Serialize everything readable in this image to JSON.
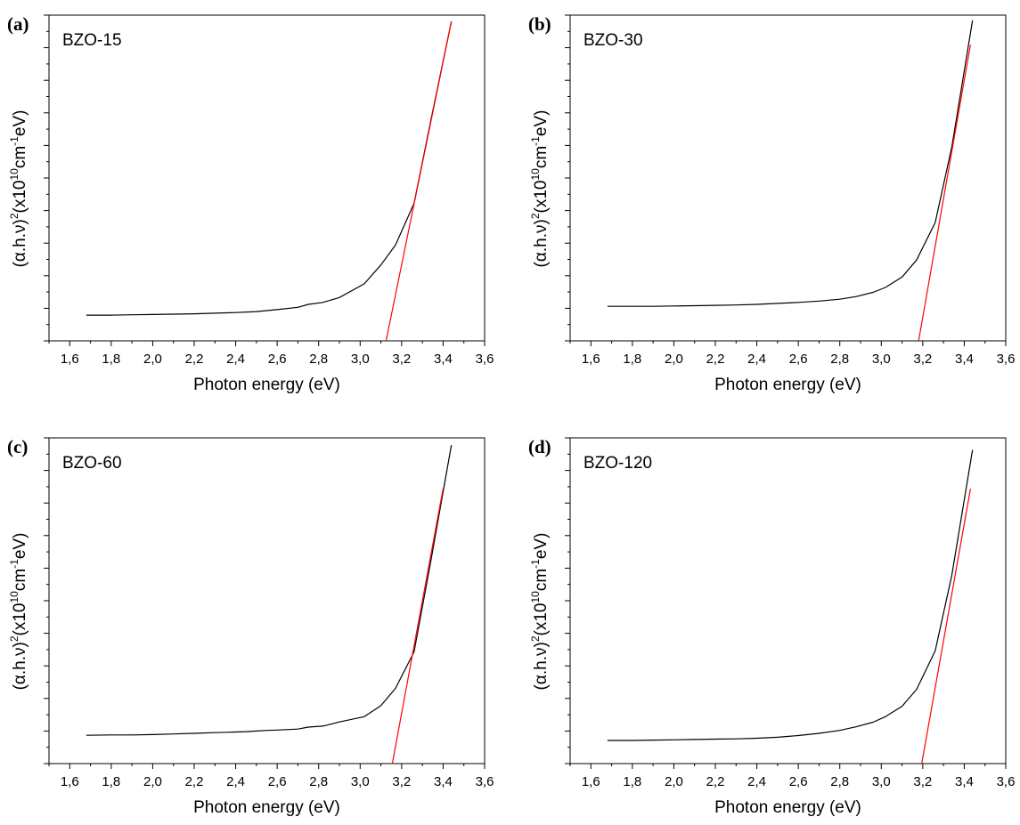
{
  "figure": {
    "xlabel": "Photon energy (eV)",
    "ylabel_parts": [
      "(α.h.ν)",
      "2",
      "(x10",
      "10",
      "cm",
      "-1",
      "eV)"
    ]
  },
  "chart_data": [
    {
      "type": "line",
      "panel": "(a)",
      "label": "BZO-15",
      "xlabel": "Photon energy (eV)",
      "ylabel": "(α.h.ν)²(x10¹⁰cm⁻¹eV)",
      "xlim": [
        1.5,
        3.6
      ],
      "ylim": [
        0,
        100
      ],
      "xticks": [
        "1,6",
        "1,8",
        "2,0",
        "2,2",
        "2,4",
        "2,6",
        "2,8",
        "3,0",
        "3,2",
        "3,4",
        "3,6"
      ],
      "grid": false,
      "series": [
        {
          "color": "#000000",
          "x": [
            1.68,
            1.8,
            1.9,
            2.0,
            2.1,
            2.2,
            2.3,
            2.4,
            2.5,
            2.6,
            2.7,
            2.75,
            2.82,
            2.9,
            3.02,
            3.1,
            3.17,
            3.26,
            3.34,
            3.44
          ],
          "y": [
            7.9,
            7.9,
            8.0,
            8.1,
            8.2,
            8.3,
            8.5,
            8.7,
            9.0,
            9.6,
            10.3,
            11.2,
            11.8,
            13.3,
            17.5,
            23.3,
            29.4,
            42.2,
            67.5,
            98.1
          ]
        },
        {
          "color": "#ff0000",
          "x": [
            3.125,
            3.44
          ],
          "y": [
            0,
            98.1
          ]
        }
      ]
    },
    {
      "type": "line",
      "panel": "(b)",
      "label": "BZO-30",
      "xlabel": "Photon energy (eV)",
      "ylabel": "(α.h.ν)²(x10¹⁰cm⁻¹eV)",
      "xlim": [
        1.5,
        3.6
      ],
      "ylim": [
        0,
        100
      ],
      "xticks": [
        "1,6",
        "1,8",
        "2,0",
        "2,2",
        "2,4",
        "2,6",
        "2,8",
        "3,0",
        "3,2",
        "3,4",
        "3,6"
      ],
      "grid": false,
      "series": [
        {
          "color": "#000000",
          "x": [
            1.68,
            1.8,
            1.9,
            2.0,
            2.1,
            2.2,
            2.3,
            2.4,
            2.5,
            2.6,
            2.7,
            2.8,
            2.88,
            2.96,
            3.02,
            3.1,
            3.17,
            3.26,
            3.34,
            3.44
          ],
          "y": [
            10.6,
            10.6,
            10.6,
            10.7,
            10.8,
            10.9,
            11.0,
            11.2,
            11.5,
            11.8,
            12.2,
            12.8,
            13.6,
            14.9,
            16.4,
            19.6,
            24.8,
            36.3,
            59.6,
            98.4
          ]
        },
        {
          "color": "#ff0000",
          "x": [
            3.18,
            3.43
          ],
          "y": [
            0,
            90.9
          ]
        }
      ]
    },
    {
      "type": "line",
      "panel": "(c)",
      "label": "BZO-60",
      "xlabel": "Photon energy (eV)",
      "ylabel": "(α.h.ν)²(x10¹⁰cm⁻¹eV)",
      "xlim": [
        1.5,
        3.6
      ],
      "ylim": [
        0,
        100
      ],
      "xticks": [
        "1,6",
        "1,8",
        "2,0",
        "2,2",
        "2,4",
        "2,6",
        "2,8",
        "3,0",
        "3,2",
        "3,4",
        "3,6"
      ],
      "grid": false,
      "series": [
        {
          "color": "#000000",
          "x": [
            1.68,
            1.8,
            1.9,
            2.0,
            2.1,
            2.2,
            2.3,
            2.4,
            2.45,
            2.5,
            2.55,
            2.6,
            2.7,
            2.75,
            2.82,
            2.9,
            3.02,
            3.1,
            3.17,
            3.26,
            3.34,
            3.44
          ],
          "y": [
            8.7,
            8.8,
            8.8,
            8.9,
            9.1,
            9.3,
            9.5,
            9.7,
            9.8,
            10.0,
            10.2,
            10.3,
            10.6,
            11.2,
            11.5,
            12.8,
            14.4,
            17.8,
            23.1,
            34.3,
            62.0,
            97.8
          ]
        },
        {
          "color": "#ff0000",
          "x": [
            3.155,
            3.4
          ],
          "y": [
            0,
            84.4
          ]
        }
      ]
    },
    {
      "type": "line",
      "panel": "(d)",
      "label": "BZO-120",
      "xlabel": "Photon energy (eV)",
      "ylabel": "(α.h.ν)²(x10¹⁰cm⁻¹eV)",
      "xlim": [
        1.5,
        3.6
      ],
      "ylim": [
        0,
        100
      ],
      "xticks": [
        "1,6",
        "1,8",
        "2,0",
        "2,2",
        "2,4",
        "2,6",
        "2,8",
        "3,0",
        "3,2",
        "3,4",
        "3,6"
      ],
      "grid": false,
      "series": [
        {
          "color": "#000000",
          "x": [
            1.68,
            1.8,
            1.9,
            2.0,
            2.1,
            2.2,
            2.3,
            2.4,
            2.5,
            2.6,
            2.7,
            2.8,
            2.88,
            2.96,
            3.02,
            3.1,
            3.17,
            3.26,
            3.34,
            3.44
          ],
          "y": [
            7.1,
            7.1,
            7.2,
            7.3,
            7.4,
            7.5,
            7.6,
            7.8,
            8.1,
            8.6,
            9.3,
            10.2,
            11.3,
            12.7,
            14.4,
            17.6,
            22.8,
            34.6,
            57.9,
            96.3
          ]
        },
        {
          "color": "#ff0000",
          "x": [
            3.195,
            3.43
          ],
          "y": [
            0,
            84.4
          ]
        }
      ]
    }
  ]
}
